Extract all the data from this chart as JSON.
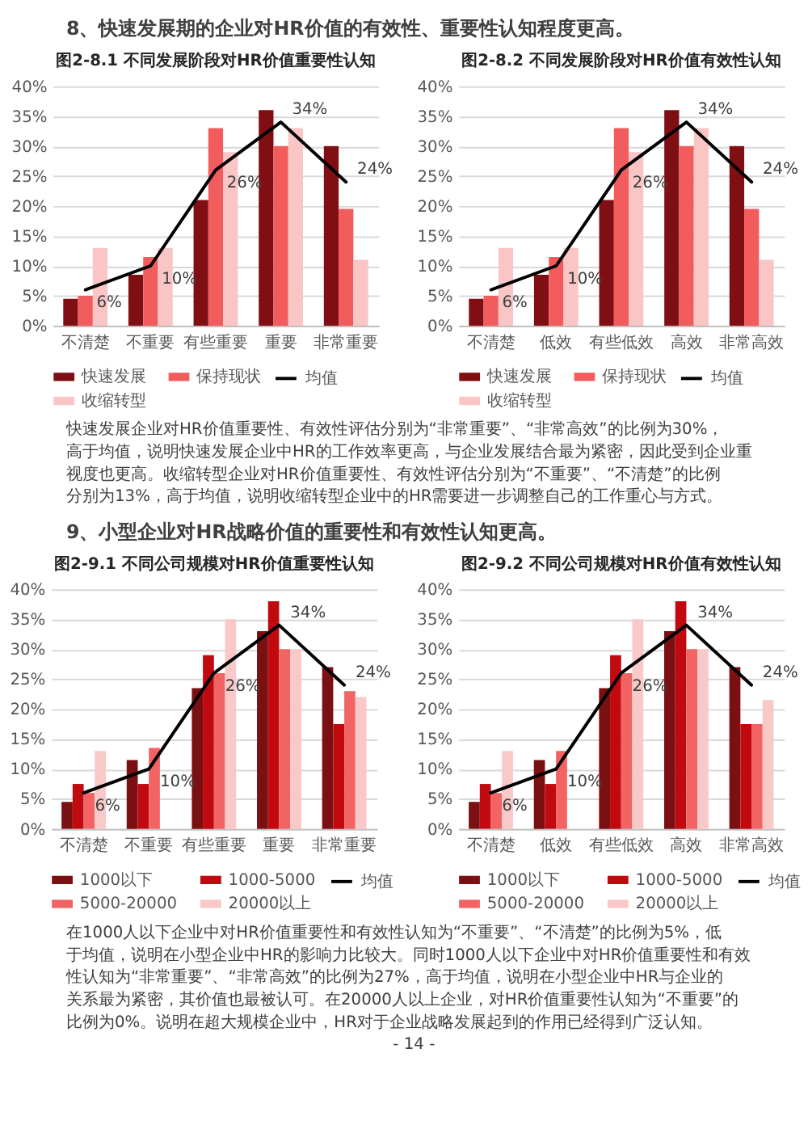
{
  "chart_data": [
    {
      "type": "bar",
      "title": "图2-8.1 不同发展阶段对HR价值重要性认知",
      "annotations": [
        "8、快速发展期的企业对HR价值的有效性、重要性认知程度更高。"
      ],
      "categories": [
        "不清楚",
        "不重要",
        "有些重要",
        "重要",
        "非常重要"
      ],
      "series": [
        {
          "name": "快速发展",
          "color": "#7f0f12",
          "values": [
            4.5,
            8.5,
            21,
            36,
            30
          ]
        },
        {
          "name": "保持现状",
          "color": "#f25c5c",
          "values": [
            5,
            11.5,
            33,
            30,
            19.5
          ]
        },
        {
          "name": "收缩转型",
          "color": "#f9c5c5",
          "values": [
            13,
            13,
            29,
            33,
            11
          ]
        },
        {
          "name": "均值",
          "type": "line",
          "color": "#000000",
          "values": [
            6,
            10,
            26,
            34,
            24
          ],
          "value_labels": [
            "6%",
            "10%",
            "26%",
            "34%",
            "24%"
          ]
        }
      ],
      "ylim": [
        0,
        40
      ],
      "yticks": [
        {
          "value": 0,
          "label": "0%"
        },
        {
          "value": 5,
          "label": "5%"
        },
        {
          "value": 10,
          "label": "10%"
        },
        {
          "value": 15,
          "label": "15%"
        },
        {
          "value": 20,
          "label": "20%"
        },
        {
          "value": 25,
          "label": "25%"
        },
        {
          "value": 30,
          "label": "30%"
        },
        {
          "value": 35,
          "label": "35%"
        },
        {
          "value": 40,
          "label": "40%"
        }
      ],
      "grid": "y",
      "legend": "bottom"
    },
    {
      "type": "bar",
      "title": "图2-8.2 不同发展阶段对HR价值有效性认知",
      "annotations": [
        "快速发展企业对HR价值重要性、有效性评估分别为“非常重要”、“非常高效”的比例为30%，高于均值，说明快速发展企业中HR的工作效率更高，与企业发展结合最为紧密，因此受到企业重视度也更高。收缩转型企业对HR价值重要性、有效性评估分别为“不重要”、“不清楚”的比例分别为13%，高于均值，说明收缩转型企业中的HR需要进一步调整自己的工作重心与方式。"
      ],
      "categories": [
        "不清楚",
        "低效",
        "有些低效",
        "高效",
        "非常高效"
      ],
      "series": [
        {
          "name": "快速发展",
          "color": "#7f0f12",
          "values": [
            4.5,
            8.5,
            21,
            36,
            30
          ]
        },
        {
          "name": "保持现状",
          "color": "#f25c5c",
          "values": [
            5,
            11.5,
            33,
            30,
            19.5
          ]
        },
        {
          "name": "收缩转型",
          "color": "#f9c5c5",
          "values": [
            13,
            13,
            29,
            33,
            11
          ]
        },
        {
          "name": "均值",
          "type": "line",
          "color": "#000000",
          "values": [
            6,
            10,
            26,
            34,
            24
          ],
          "value_labels": [
            "6%",
            "10%",
            "26%",
            "34%",
            "24%"
          ]
        }
      ],
      "ylim": [
        0,
        40
      ],
      "yticks": [
        {
          "value": 0,
          "label": "0%"
        },
        {
          "value": 5,
          "label": "5%"
        },
        {
          "value": 10,
          "label": "10%"
        },
        {
          "value": 15,
          "label": "15%"
        },
        {
          "value": 20,
          "label": "20%"
        },
        {
          "value": 25,
          "label": "25%"
        },
        {
          "value": 30,
          "label": "30%"
        },
        {
          "value": 35,
          "label": "35%"
        },
        {
          "value": 40,
          "label": "40%"
        }
      ],
      "grid": "y",
      "legend": "bottom"
    },
    {
      "type": "bar",
      "title": "图2-9.1 不同公司规模对HR价值重要性认知",
      "annotations": [
        "9、小型企业对HR战略价值的重要性和有效性认知更高。"
      ],
      "categories": [
        "不清楚",
        "不重要",
        "有些重要",
        "重要",
        "非常重要"
      ],
      "series": [
        {
          "name": "1000以下",
          "color": "#7a1012",
          "values": [
            4.5,
            11.5,
            23.5,
            33,
            27
          ]
        },
        {
          "name": "1000-5000",
          "color": "#c00a10",
          "values": [
            7.5,
            7.5,
            29,
            38,
            17.5
          ]
        },
        {
          "name": "5000-20000",
          "color": "#f26464",
          "values": [
            6,
            13.5,
            26,
            30,
            23
          ]
        },
        {
          "name": "20000以上",
          "color": "#f9c8c8",
          "values": [
            13,
            0,
            35,
            30,
            22
          ]
        },
        {
          "name": "均值",
          "type": "line",
          "color": "#000000",
          "values": [
            6,
            10,
            26,
            34,
            24
          ],
          "value_labels": [
            "6%",
            "10%",
            "26%",
            "34%",
            "24%"
          ]
        }
      ],
      "ylim": [
        0,
        40
      ],
      "yticks": [
        {
          "value": 0,
          "label": "0%"
        },
        {
          "value": 5,
          "label": "5%"
        },
        {
          "value": 10,
          "label": "10%"
        },
        {
          "value": 15,
          "label": "15%"
        },
        {
          "value": 20,
          "label": "20%"
        },
        {
          "value": 25,
          "label": "25%"
        },
        {
          "value": 30,
          "label": "30%"
        },
        {
          "value": 35,
          "label": "35%"
        },
        {
          "value": 40,
          "label": "40%"
        }
      ],
      "grid": "y",
      "legend": "bottom"
    },
    {
      "type": "bar",
      "title": "图2-9.2 不同公司规模对HR价值有效性认知",
      "annotations": [
        "在1000人以下企业中对HR价值重要性和有效性认知为“不重要”、“不清楚”的比例为5%，低于均值，说明在小型企业中HR的影响力比较大。同时1000人以下企业中对HR价值重要性和有效性认知为“非常重要”、“非常高效”的比例为27%，高于均值，说明在小型企业中HR与企业的关系最为紧密，其价值也最被认可。在20000人以上企业，对HR价值重要性认知为“不重要”的比例为0%。说明在超大规模企业中，HR对于企业战略发展起到的作用已经得到广泛认知。",
        "- 14 -"
      ],
      "categories": [
        "不清楚",
        "低效",
        "有些低效",
        "高效",
        "非常高效"
      ],
      "series": [
        {
          "name": "1000以下",
          "color": "#7a1012",
          "values": [
            4.5,
            11.5,
            23.5,
            33,
            27
          ]
        },
        {
          "name": "1000-5000",
          "color": "#c00a10",
          "values": [
            7.5,
            7.5,
            29,
            38,
            17.5
          ]
        },
        {
          "name": "5000-20000",
          "color": "#f26464",
          "values": [
            6,
            13,
            26,
            30,
            17.5
          ]
        },
        {
          "name": "20000以上",
          "color": "#f9c8c8",
          "values": [
            13,
            0,
            35,
            30,
            21.5
          ]
        },
        {
          "name": "均值",
          "type": "line",
          "color": "#000000",
          "values": [
            6,
            10,
            26,
            34,
            24
          ],
          "value_labels": [
            "6%",
            "10%",
            "26%",
            "34%",
            "24%"
          ]
        }
      ],
      "ylim": [
        0,
        40
      ],
      "yticks": [
        {
          "value": 0,
          "label": "0%"
        },
        {
          "value": 5,
          "label": "5%"
        },
        {
          "value": 10,
          "label": "10%"
        },
        {
          "value": 15,
          "label": "15%"
        },
        {
          "value": 20,
          "label": "20%"
        },
        {
          "value": 25,
          "label": "25%"
        },
        {
          "value": 30,
          "label": "30%"
        },
        {
          "value": 35,
          "label": "35%"
        },
        {
          "value": 40,
          "label": "40%"
        }
      ],
      "grid": "y",
      "legend": "bottom"
    }
  ]
}
